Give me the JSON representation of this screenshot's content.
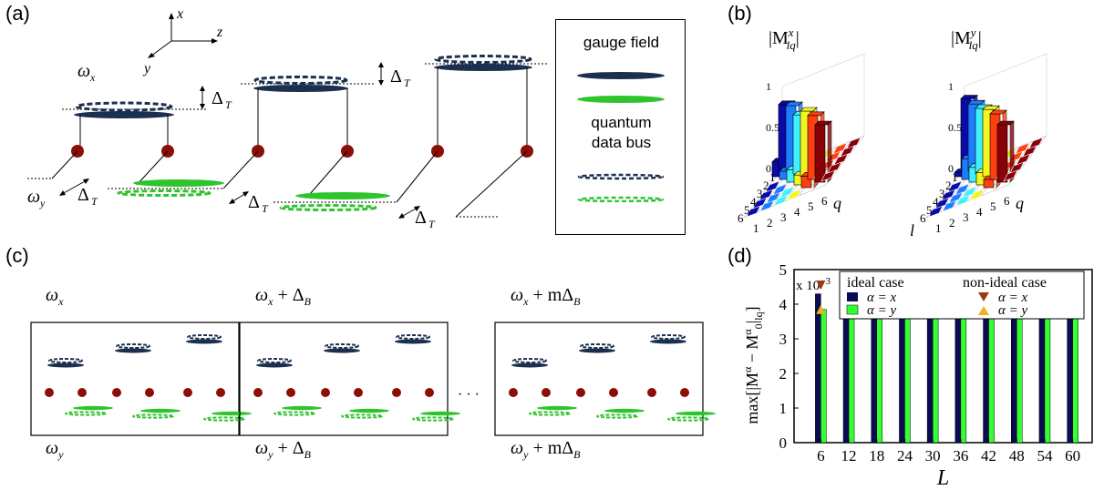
{
  "panel_labels": {
    "a": "(a)",
    "b": "(b)",
    "c": "(c)",
    "d": "(d)"
  },
  "panel_a": {
    "axes": {
      "x": "x",
      "y": "y",
      "z": "z"
    },
    "omega_x": "ω",
    "omega_x_sub": "x",
    "omega_y": "ω",
    "omega_y_sub": "y",
    "delta": "Δ",
    "delta_sub": "T",
    "legend": {
      "gauge": "gauge field",
      "quantum1": "quantum",
      "quantum2": "data bus"
    },
    "colors": {
      "navy": "#1b2f4f",
      "green": "#2ec42e",
      "qubit": "#8b0f06"
    }
  },
  "panel_b": {
    "left_label": "|M",
    "left_sup": "x",
    "right_sup": "y",
    "sub": "lq",
    "bar": "|",
    "l_ticks": [
      "1",
      "2",
      "3",
      "4",
      "5",
      "6"
    ],
    "q_ticks": [
      "1",
      "2",
      "3",
      "4",
      "5",
      "6"
    ],
    "z_ticks": [
      "1",
      "0.5",
      "0"
    ],
    "l_axis": "l",
    "q_axis": "q",
    "bar_colors": [
      "#0a0aa8",
      "#1e7cff",
      "#40f0ff",
      "#f4f41e",
      "#ff4010",
      "#880008"
    ]
  },
  "panel_c": {
    "omega_x": "ω",
    "omega_y": "ω",
    "sub_x": "x",
    "sub_y": "y",
    "plus_delta": "+ Δ",
    "plus_m_delta": "+ mΔ",
    "sub_B": "B",
    "ellipsis": "· · ·"
  },
  "chart_data": {
    "type": "bar",
    "categories": [
      "6",
      "12",
      "18",
      "24",
      "30",
      "36",
      "42",
      "48",
      "54",
      "60"
    ],
    "series": [
      {
        "name": "α = x",
        "values": [
          4.3,
          4.4,
          4.45,
          4.4,
          4.45,
          4.4,
          4.45,
          4.4,
          4.45,
          4.4
        ]
      },
      {
        "name": "α = y",
        "values": [
          3.85,
          3.9,
          3.9,
          3.9,
          3.9,
          3.9,
          3.9,
          3.9,
          3.9,
          3.9
        ]
      },
      {
        "name": "α = x",
        "values": [
          4.55,
          4.55,
          4.6,
          4.55,
          4.6,
          4.55,
          4.65,
          4.55,
          4.6,
          4.55
        ]
      },
      {
        "name": "α = y",
        "values": [
          3.85,
          4.0,
          4.0,
          3.95,
          4.0,
          3.95,
          4.0,
          3.95,
          4.0,
          4.0
        ]
      }
    ],
    "legend_groups": [
      "ideal case",
      "non-ideal case"
    ],
    "series_colors": [
      "#0b0b55",
      "#33ff33",
      "#9b3a10",
      "#f0b020"
    ],
    "xlabel": "L",
    "ylabel": "max[|M",
    "ylabel_sup": "α",
    "ylabel_mid": " − M",
    "ylabel_sub0": "0",
    "ylabel_end": "|",
    "ylabel_sub_lq": "lq",
    "ylabel_close": "]",
    "ylim": [
      0,
      5
    ],
    "y_ticks": [
      "0",
      "1",
      "2",
      "3",
      "4",
      "5"
    ],
    "multiplier": "x 10",
    "multiplier_exp": "−3"
  }
}
